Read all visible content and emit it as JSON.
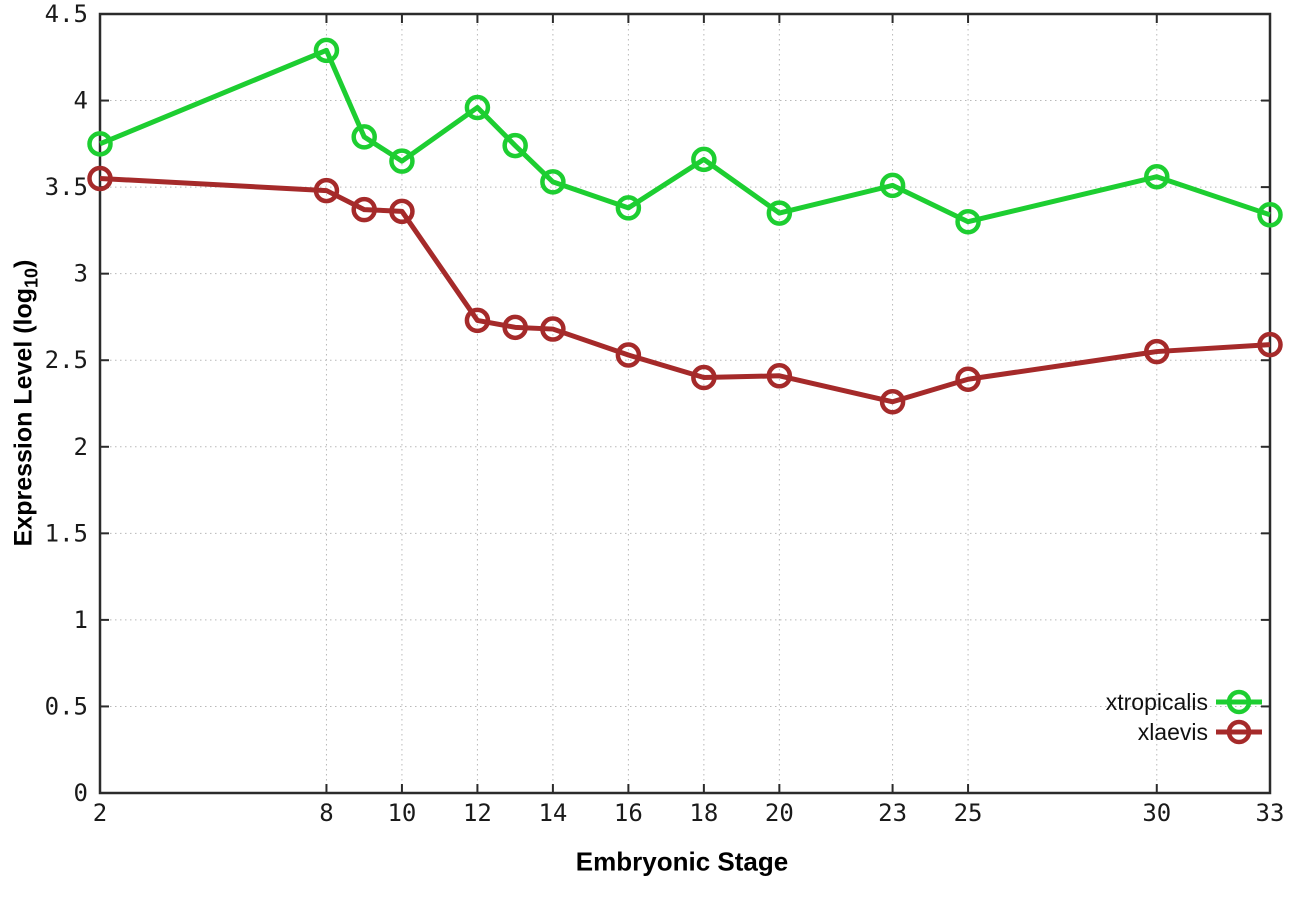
{
  "chart_data": {
    "type": "line",
    "title": "",
    "xlabel": "Embryonic Stage",
    "ylabel": "Expression Level (log10)",
    "ylabel_parts": {
      "pre": "Expression Level (log",
      "sub": "10",
      "post": ")"
    },
    "xlim": [
      2,
      33
    ],
    "ylim": [
      0,
      4.5
    ],
    "grid": true,
    "legend_position": "inside bottom-right",
    "x_tick_values": [
      2,
      8,
      10,
      12,
      14,
      16,
      18,
      20,
      23,
      25,
      30,
      33
    ],
    "x_tick_labels": [
      "2",
      "8",
      "10",
      "12",
      "14",
      "16",
      "18",
      "20",
      "23",
      "25",
      "30",
      "33"
    ],
    "y_tick_values": [
      0,
      0.5,
      1,
      1.5,
      2,
      2.5,
      3,
      3.5,
      4,
      4.5
    ],
    "y_tick_labels": [
      "0",
      "0.5",
      "1",
      "1.5",
      "2",
      "2.5",
      "3",
      "3.5",
      "4",
      "4.5"
    ],
    "x": [
      2,
      8,
      9,
      10,
      12,
      13,
      14,
      16,
      18,
      20,
      23,
      25,
      30,
      33
    ],
    "series": [
      {
        "name": "xtropicalis",
        "color": "#1dce31",
        "marker": "open-circle",
        "values": [
          3.75,
          4.29,
          3.79,
          3.65,
          3.96,
          3.74,
          3.53,
          3.38,
          3.66,
          3.35,
          3.51,
          3.3,
          3.56,
          3.34
        ]
      },
      {
        "name": "xlaevis",
        "color": "#a52a2a",
        "marker": "open-circle",
        "values": [
          3.55,
          3.48,
          3.37,
          3.36,
          2.73,
          2.69,
          2.68,
          2.53,
          2.4,
          2.41,
          2.26,
          2.39,
          2.55,
          2.59
        ]
      }
    ],
    "colors": {
      "grid": "#b8b8b8",
      "axis": "#2b2b2b",
      "text": "#000000"
    }
  }
}
